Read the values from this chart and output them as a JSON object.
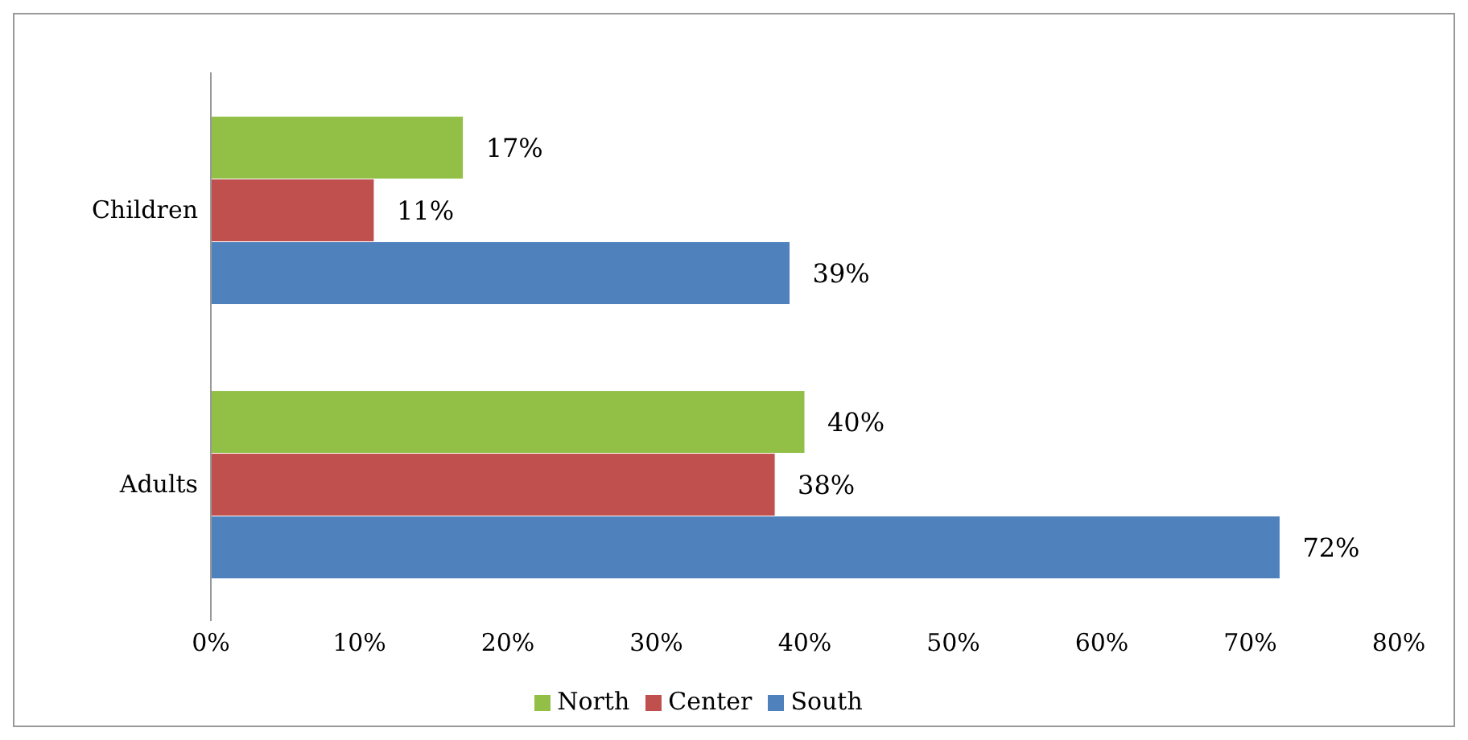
{
  "chart_data": {
    "type": "bar",
    "orientation": "horizontal",
    "categories": [
      "Children",
      "Adults"
    ],
    "series": [
      {
        "name": "North",
        "color": "#92c047",
        "values": [
          17,
          40
        ],
        "value_labels": [
          "17%",
          "40%"
        ]
      },
      {
        "name": "Center",
        "color": "#c0504d",
        "values": [
          11,
          38
        ],
        "value_labels": [
          "11%",
          "38%"
        ]
      },
      {
        "name": "South",
        "color": "#4f81bd",
        "values": [
          39,
          72
        ],
        "value_labels": [
          "39%",
          "72%"
        ]
      }
    ],
    "xlim": [
      0,
      80
    ],
    "xticks": [
      {
        "value": 0,
        "label": "0%"
      },
      {
        "value": 10,
        "label": "10%"
      },
      {
        "value": 20,
        "label": "20%"
      },
      {
        "value": 30,
        "label": "30%"
      },
      {
        "value": 40,
        "label": "40%"
      },
      {
        "value": 50,
        "label": "50%"
      },
      {
        "value": 60,
        "label": "60%"
      },
      {
        "value": 70,
        "label": "70%"
      },
      {
        "value": 80,
        "label": "80%"
      }
    ],
    "grid": false,
    "legend": "bottom"
  }
}
